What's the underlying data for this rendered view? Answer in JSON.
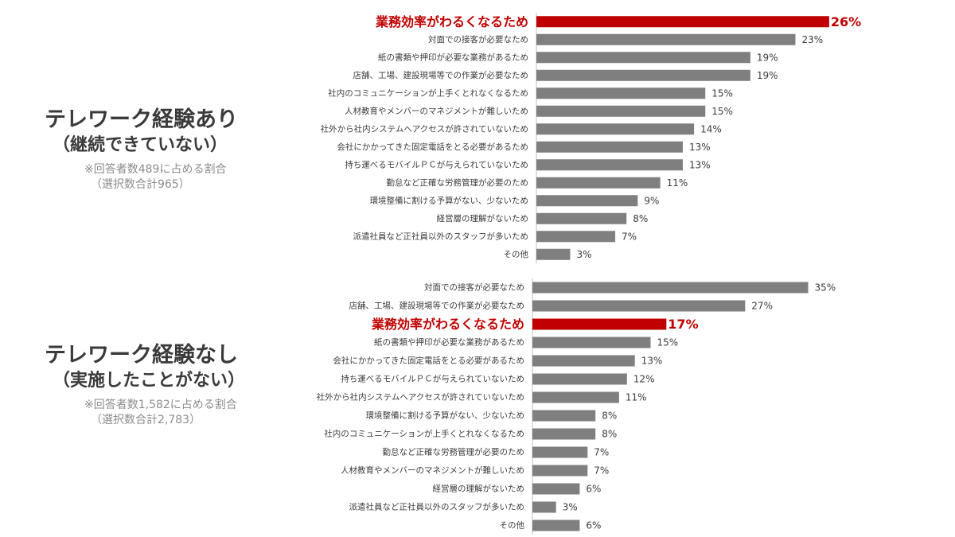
{
  "groups": [
    {
      "title": "テレワーク経験あり",
      "subtitle": "（継続できていない）",
      "note_line1": "※回答者数489に占める割合",
      "note_line2": "（選択数合計965）"
    },
    {
      "title": "テレワーク経験なし",
      "subtitle": "（実施したことがない）",
      "note_line1": "※回答者数1,582に占める割合",
      "note_line2": "（選択数合計2,783）"
    }
  ],
  "colors": {
    "bar": "#7f7f7f",
    "highlight": "#c00000",
    "axis": "#bfbfbf"
  },
  "chart_data": [
    {
      "type": "bar",
      "orientation": "horizontal",
      "group": "テレワーク経験あり（継続できていない）",
      "unit": "%",
      "highlight_index": 0,
      "categories": [
        "業務効率がわるくなるため",
        "対面での接客が必要なため",
        "紙の書類や押印が必要な業務があるため",
        "店舗、工場、建設現場等での作業が必要なため",
        "社内のコミュニケーションが上手くとれなくなるため",
        "人材教育やメンバーのマネジメントが難しいため",
        "社外から社内システムへアクセスが許されていないため",
        "会社にかかってきた固定電話をとる必要があるため",
        "持ち運べるモバイルＰＣが与えられていないため",
        "勤怠など正確な労務管理が必要のため",
        "環境整備に割ける予算がない、少ないため",
        "経営層の理解がないため",
        "派遣社員など正社員以外のスタッフが多いため",
        "その他"
      ],
      "values": [
        26,
        23,
        19,
        19,
        15,
        15,
        14,
        13,
        13,
        11,
        9,
        8,
        7,
        3
      ]
    },
    {
      "type": "bar",
      "orientation": "horizontal",
      "group": "テレワーク経験なし（実施したことがない）",
      "unit": "%",
      "highlight_index": 2,
      "categories": [
        "対面での接客が必要なため",
        "店舗、工場、建設現場等での作業が必要なため",
        "業務効率がわるくなるため",
        "紙の書類や押印が必要な業務があるため",
        "会社にかかってきた固定電話をとる必要があるため",
        "持ち運べるモバイルＰＣが与えられていないため",
        "社外から社内システムへアクセスが許されていないため",
        "環境整備に割ける予算がない、少ないため",
        "社内のコミュニケーションが上手くとれなくなるため",
        "勤怠など正確な労務管理が必要のため",
        "人材教育やメンバーのマネジメントが難しいため",
        "経営層の理解がないため",
        "派遣社員など正社員以外のスタッフが多いため",
        "その他"
      ],
      "values": [
        35,
        27,
        17,
        15,
        13,
        12,
        11,
        8,
        8,
        7,
        7,
        6,
        3,
        6
      ]
    }
  ]
}
